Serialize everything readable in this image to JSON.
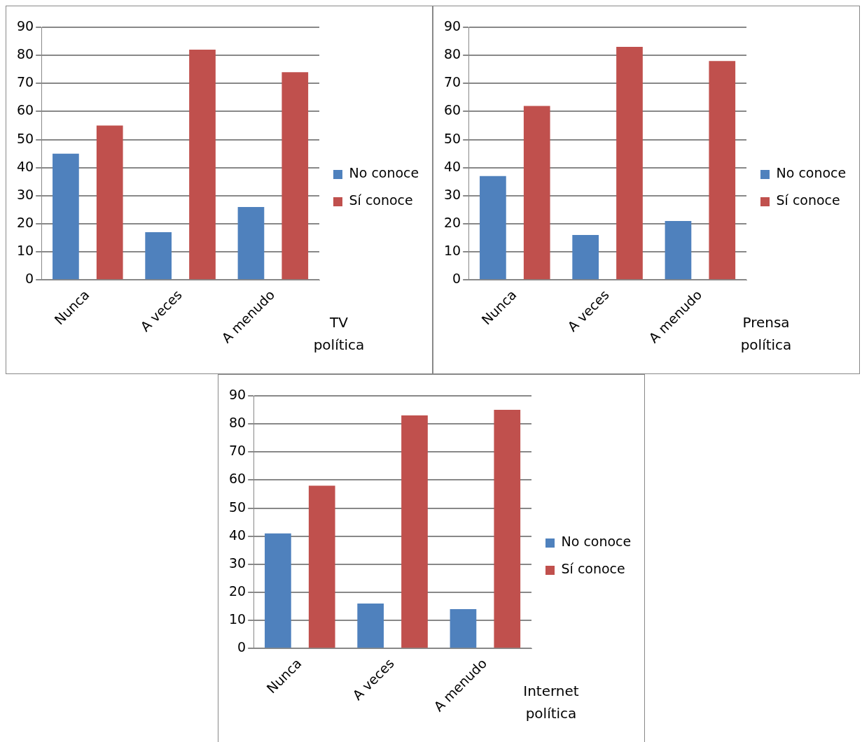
{
  "chart_data": [
    {
      "type": "bar",
      "annotations": [
        "TV\npolítica"
      ],
      "categories": [
        "Nunca",
        "A veces",
        "A menudo"
      ],
      "series": [
        {
          "name": "No conoce",
          "color": "#4f81bd",
          "values": [
            45,
            17,
            26
          ]
        },
        {
          "name": "Sí conoce",
          "color": "#c0504d",
          "values": [
            55,
            82,
            74
          ]
        }
      ],
      "ylim": [
        0,
        90
      ],
      "yticks": [
        0,
        10,
        20,
        30,
        40,
        50,
        60,
        70,
        80,
        90
      ],
      "grid": "y",
      "legend": "right"
    },
    {
      "type": "bar",
      "annotations": [
        "Prensa\npolítica"
      ],
      "categories": [
        "Nunca",
        "A veces",
        "A menudo"
      ],
      "series": [
        {
          "name": "No conoce",
          "color": "#4f81bd",
          "values": [
            37,
            16,
            21
          ]
        },
        {
          "name": "Sí conoce",
          "color": "#c0504d",
          "values": [
            62,
            83,
            78
          ]
        }
      ],
      "ylim": [
        0,
        90
      ],
      "yticks": [
        0,
        10,
        20,
        30,
        40,
        50,
        60,
        70,
        80,
        90
      ],
      "grid": "y",
      "legend": "right"
    },
    {
      "type": "bar",
      "annotations": [
        "Internet\npolítica"
      ],
      "categories": [
        "Nunca",
        "A veces",
        "A menudo"
      ],
      "series": [
        {
          "name": "No conoce",
          "color": "#4f81bd",
          "values": [
            41,
            16,
            14
          ]
        },
        {
          "name": "Sí conoce",
          "color": "#c0504d",
          "values": [
            58,
            83,
            85
          ]
        }
      ],
      "ylim": [
        0,
        90
      ],
      "yticks": [
        0,
        10,
        20,
        30,
        40,
        50,
        60,
        70,
        80,
        90
      ],
      "grid": "y",
      "legend": "right"
    }
  ]
}
